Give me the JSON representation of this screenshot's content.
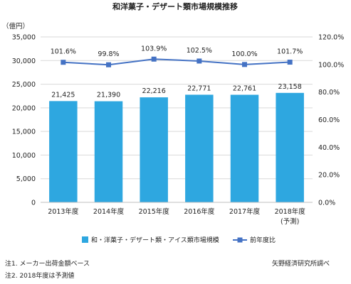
{
  "chart_data": {
    "type": "bar",
    "title": "和洋菓子・デザート類市場規模推移",
    "y_unit_label": "（億円）",
    "categories": [
      "2013年度",
      "2014年度",
      "2015年度",
      "2016年度",
      "2017年度",
      "2018年度"
    ],
    "category_note": "(予測)",
    "series": [
      {
        "name": "和・洋菓子・デザート類・アイス類市場規模",
        "type": "bar",
        "axis": "left",
        "color": "#2ea7e0",
        "values": [
          21425,
          21390,
          22216,
          22771,
          22761,
          23158
        ],
        "value_labels": [
          "21,425",
          "21,390",
          "22,216",
          "22,771",
          "22,761",
          "23,158"
        ]
      },
      {
        "name": "前年度比",
        "type": "line",
        "axis": "right",
        "color": "#4472c4",
        "values": [
          101.6,
          99.8,
          103.9,
          102.5,
          100.0,
          101.7
        ],
        "value_labels": [
          "101.6%",
          "99.8%",
          "103.9%",
          "102.5%",
          "100.0%",
          "101.7%"
        ]
      }
    ],
    "y_left": {
      "min": 0,
      "max": 35000,
      "ticks": [
        0,
        5000,
        10000,
        15000,
        20000,
        25000,
        30000,
        35000
      ],
      "tick_labels": [
        "0",
        "5,000",
        "10,000",
        "15,000",
        "20,000",
        "25,000",
        "30,000",
        "35,000"
      ]
    },
    "y_right": {
      "min": 0,
      "max": 120,
      "ticks": [
        0,
        20,
        40,
        60,
        80,
        100,
        120
      ],
      "tick_labels": [
        "0.0%",
        "20.0%",
        "40.0%",
        "60.0%",
        "80.0%",
        "100.0%",
        "120.0%"
      ]
    },
    "grid": true,
    "legend_position": "bottom"
  },
  "notes": {
    "note1": "注1. メーカー出荷金額ベース",
    "note2": "注2. 2018年度は予測値",
    "source": "矢野経済研究所調べ"
  }
}
